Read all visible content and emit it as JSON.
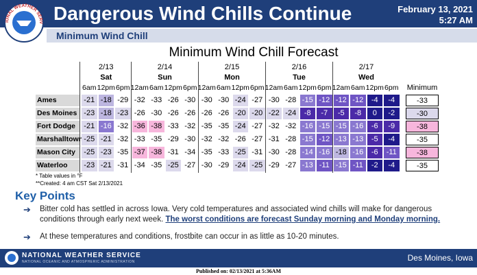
{
  "header": {
    "logo_text": "NATIONAL WEATHER SERVICE",
    "title": "Dangerous Wind Chills Continue",
    "date": "February 13, 2021",
    "time": "5:27 AM",
    "subtitle": "Minimum Wind Chill"
  },
  "table": {
    "title": "Minimum Wind Chill Forecast",
    "min_header": "Minimum",
    "days": [
      {
        "date": "2/13",
        "day": "Sat",
        "times": [
          "6am",
          "12pm",
          "6pm"
        ]
      },
      {
        "date": "2/14",
        "day": "Sun",
        "times": [
          "12am",
          "6am",
          "12pm",
          "6pm"
        ]
      },
      {
        "date": "2/15",
        "day": "Mon",
        "times": [
          "12am",
          "6am",
          "12pm",
          "6pm"
        ]
      },
      {
        "date": "2/16",
        "day": "Tue",
        "times": [
          "12am",
          "6am",
          "12pm",
          "6pm"
        ]
      },
      {
        "date": "2/17",
        "day": "Wed",
        "times": [
          "12am",
          "6am",
          "12pm",
          "6pm"
        ]
      }
    ],
    "rows": [
      {
        "city": "Ames",
        "values": [
          -21,
          -18,
          -29,
          -32,
          -33,
          -26,
          -30,
          -30,
          -30,
          -24,
          -27,
          -30,
          -28,
          -15,
          -12,
          -12,
          -12,
          -4,
          -4
        ],
        "minimum": -33
      },
      {
        "city": "Des Moines",
        "values": [
          -23,
          -18,
          -23,
          -26,
          -30,
          -26,
          -26,
          -26,
          -26,
          -20,
          -20,
          -22,
          -24,
          -8,
          -7,
          -5,
          -8,
          0,
          -2
        ],
        "minimum": -30
      },
      {
        "city": "Fort Dodge",
        "values": [
          -21,
          -16,
          -32,
          -36,
          -38,
          -33,
          -32,
          -35,
          -35,
          -24,
          -27,
          -32,
          -32,
          -16,
          -15,
          -15,
          -16,
          -6,
          -9
        ],
        "minimum": -38
      },
      {
        "city": "Marshalltown",
        "values": [
          -25,
          -21,
          -32,
          -33,
          -35,
          -29,
          -30,
          -32,
          -32,
          -26,
          -27,
          -31,
          -28,
          -15,
          -12,
          -13,
          -13,
          -5,
          -4
        ],
        "minimum": -35
      },
      {
        "city": "Mason City",
        "values": [
          -25,
          -23,
          -35,
          -37,
          -38,
          -31,
          -34,
          -35,
          -33,
          -25,
          -31,
          -30,
          -28,
          -14,
          -16,
          -18,
          -16,
          -6,
          -11
        ],
        "minimum": -38
      },
      {
        "city": "Waterloo",
        "values": [
          -23,
          -21,
          -31,
          -34,
          -35,
          -25,
          -27,
          -30,
          -29,
          -24,
          -25,
          -29,
          -27,
          -13,
          -11,
          -15,
          -11,
          -2,
          -4
        ],
        "minimum": -35
      }
    ],
    "notes": [
      "* Table values in °F",
      "**Created: 4 am CST Sat 2/13/2021"
    ]
  },
  "key_points": {
    "title": "Key Points",
    "items": [
      {
        "text": "Bitter cold has settled in across Iowa. Very cold temperatures and associated wind chills will make for dangerous conditions through early next week.",
        "emphasis": "The worst conditions are forecast Sunday morning and Monday morning."
      },
      {
        "text": "At these temperatures and conditions, frostbite can occur in as little as 10-20 minutes."
      }
    ]
  },
  "footer": {
    "agency": "NATIONAL WEATHER SERVICE",
    "sub": "NATIONAL OCEANIC AND ATMOSPHERIC ADMINISTRATION",
    "office": "Des Moines, Iowa",
    "published": "Published on: 02/13/2021 at 5:36AM"
  }
}
